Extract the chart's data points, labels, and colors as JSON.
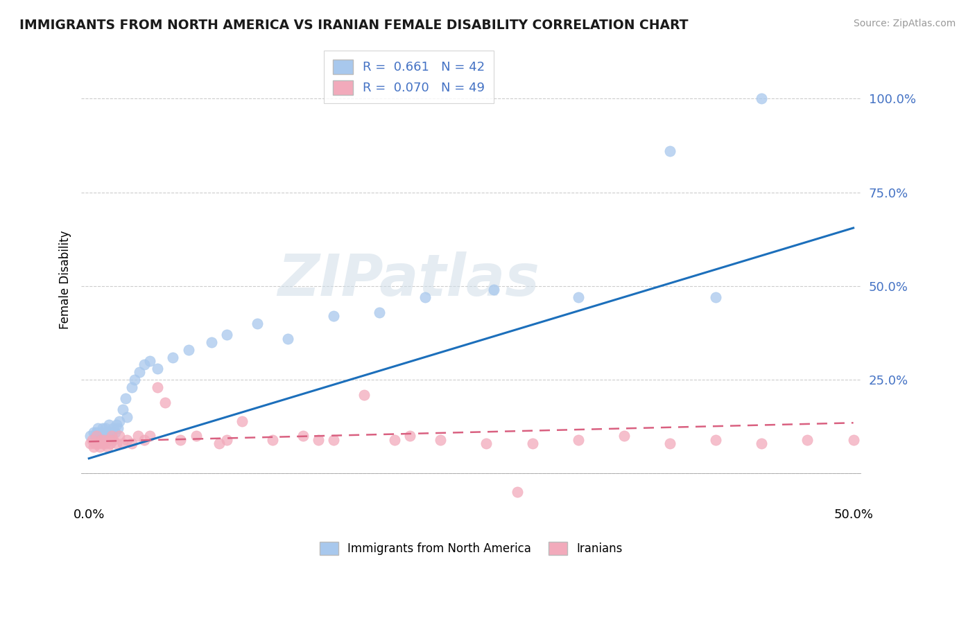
{
  "title": "IMMIGRANTS FROM NORTH AMERICA VS IRANIAN FEMALE DISABILITY CORRELATION CHART",
  "source": "Source: ZipAtlas.com",
  "ylabel": "Female Disability",
  "xlim": [
    0.0,
    0.5
  ],
  "ylim": [
    -0.05,
    1.1
  ],
  "ytick_vals": [
    0.0,
    0.25,
    0.5,
    0.75,
    1.0
  ],
  "ytick_labels": [
    "",
    "25.0%",
    "50.0%",
    "75.0%",
    "100.0%"
  ],
  "blue_color": "#A8C8ED",
  "pink_color": "#F2AABB",
  "blue_line_color": "#1C6FBB",
  "pink_line_color": "#D96080",
  "watermark_text": "ZIPatlas",
  "blue_R": 0.661,
  "blue_N": 42,
  "pink_R": 0.07,
  "pink_N": 49,
  "blue_scatter_x": [
    0.001,
    0.003,
    0.004,
    0.005,
    0.006,
    0.007,
    0.008,
    0.009,
    0.01,
    0.011,
    0.012,
    0.013,
    0.014,
    0.015,
    0.016,
    0.017,
    0.018,
    0.019,
    0.02,
    0.022,
    0.024,
    0.025,
    0.028,
    0.03,
    0.033,
    0.036,
    0.04,
    0.045,
    0.055,
    0.065,
    0.08,
    0.09,
    0.11,
    0.13,
    0.16,
    0.19,
    0.22,
    0.265,
    0.32,
    0.38,
    0.41,
    0.44
  ],
  "blue_scatter_y": [
    0.1,
    0.11,
    0.1,
    0.11,
    0.12,
    0.1,
    0.11,
    0.12,
    0.1,
    0.12,
    0.11,
    0.13,
    0.11,
    0.1,
    0.12,
    0.11,
    0.13,
    0.12,
    0.14,
    0.17,
    0.2,
    0.15,
    0.23,
    0.25,
    0.27,
    0.29,
    0.3,
    0.28,
    0.31,
    0.33,
    0.35,
    0.37,
    0.4,
    0.36,
    0.42,
    0.43,
    0.47,
    0.49,
    0.47,
    0.86,
    0.47,
    1.0
  ],
  "pink_scatter_x": [
    0.001,
    0.002,
    0.003,
    0.004,
    0.005,
    0.006,
    0.007,
    0.008,
    0.009,
    0.01,
    0.011,
    0.012,
    0.013,
    0.014,
    0.015,
    0.016,
    0.018,
    0.02,
    0.022,
    0.025,
    0.028,
    0.032,
    0.036,
    0.04,
    0.045,
    0.05,
    0.06,
    0.07,
    0.085,
    0.1,
    0.12,
    0.14,
    0.16,
    0.18,
    0.2,
    0.23,
    0.26,
    0.29,
    0.32,
    0.35,
    0.38,
    0.41,
    0.44,
    0.47,
    0.5,
    0.28,
    0.21,
    0.15,
    0.09
  ],
  "pink_scatter_y": [
    0.08,
    0.09,
    0.07,
    0.08,
    0.1,
    0.08,
    0.07,
    0.09,
    0.08,
    0.09,
    0.08,
    0.07,
    0.09,
    0.08,
    0.1,
    0.09,
    0.08,
    0.1,
    0.08,
    0.09,
    0.08,
    0.1,
    0.09,
    0.1,
    0.23,
    0.19,
    0.09,
    0.1,
    0.08,
    0.14,
    0.09,
    0.1,
    0.09,
    0.21,
    0.09,
    0.09,
    0.08,
    0.08,
    0.09,
    0.1,
    0.08,
    0.09,
    0.08,
    0.09,
    0.09,
    -0.05,
    0.1,
    0.09,
    0.09
  ]
}
